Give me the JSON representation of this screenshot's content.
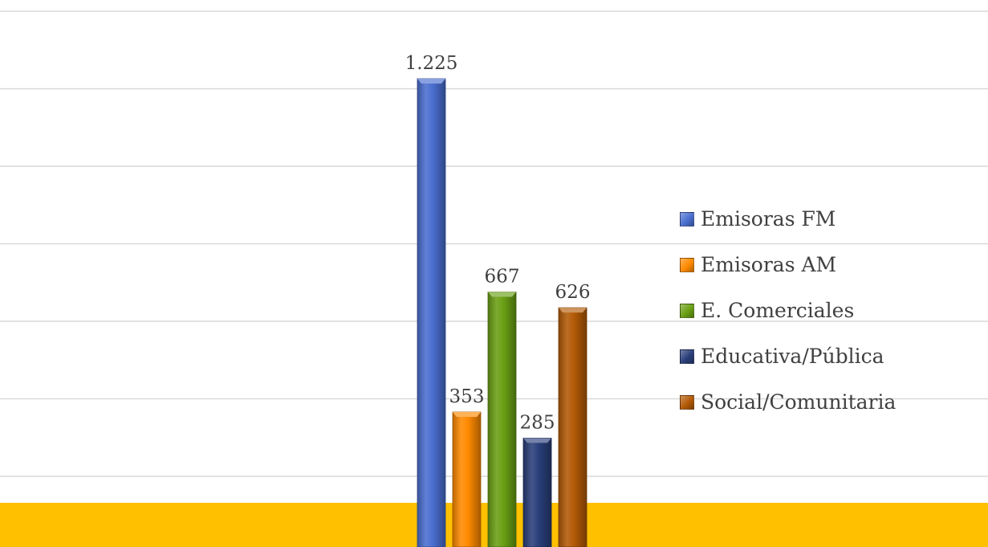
{
  "chart_data": {
    "type": "bar",
    "categories": [
      ""
    ],
    "series": [
      {
        "name": "Emisoras FM",
        "label": "1.225",
        "values": [
          1225
        ],
        "color": "#4a6fd0"
      },
      {
        "name": "Emisoras AM",
        "label": "353",
        "values": [
          353
        ],
        "color": "#ff8a00"
      },
      {
        "name": "E. Comerciales",
        "label": "667",
        "values": [
          667
        ],
        "color": "#6aa014"
      },
      {
        "name": "Educativa/Pública",
        "label": "285",
        "values": [
          285
        ],
        "color": "#2a3f7a"
      },
      {
        "name": "Social/Comunitaria",
        "label": "626",
        "values": [
          626
        ],
        "color": "#b35a06"
      }
    ],
    "ylim": [
      0,
      1400
    ],
    "grid": true,
    "legend": "right",
    "title": "",
    "xlabel": "",
    "ylabel": "",
    "floor_color": "#ffc000",
    "gridline_color": "#d9d9d9"
  }
}
